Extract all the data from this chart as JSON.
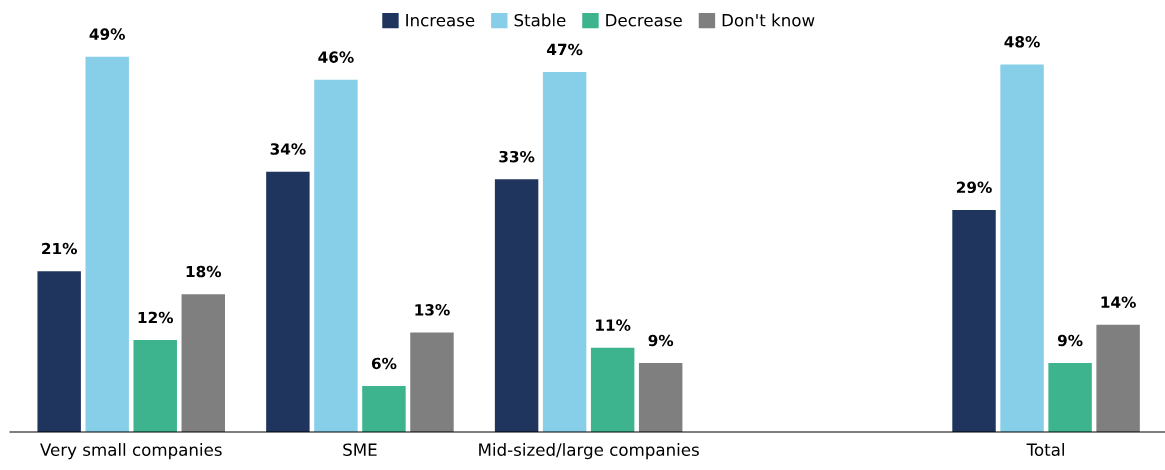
{
  "chart_data": {
    "type": "bar",
    "categories": [
      "Very small companies",
      "SME",
      "Mid-sized/large companies",
      null,
      "Total"
    ],
    "series": [
      {
        "name": "Increase",
        "color": "#1f355e",
        "values": [
          21,
          34,
          33,
          null,
          29
        ],
        "value_labels": [
          "21%",
          "34%",
          "33%",
          null,
          "29%"
        ]
      },
      {
        "name": "Stable",
        "color": "#87cfe8",
        "values": [
          49,
          46,
          47,
          null,
          48
        ],
        "value_labels": [
          "49%",
          "46%",
          "47%",
          null,
          "48%"
        ]
      },
      {
        "name": "Decrease",
        "color": "#3db38e",
        "values": [
          12,
          6,
          11,
          null,
          9
        ],
        "value_labels": [
          "12%",
          "6%",
          "11%",
          null,
          "9%"
        ]
      },
      {
        "name": "Don't know",
        "color": "#7f7f7f",
        "values": [
          18,
          13,
          9,
          null,
          14
        ],
        "value_labels": [
          "18%",
          "13%",
          "9%",
          null,
          "14%"
        ]
      }
    ],
    "legend": "top",
    "grid": false
  }
}
